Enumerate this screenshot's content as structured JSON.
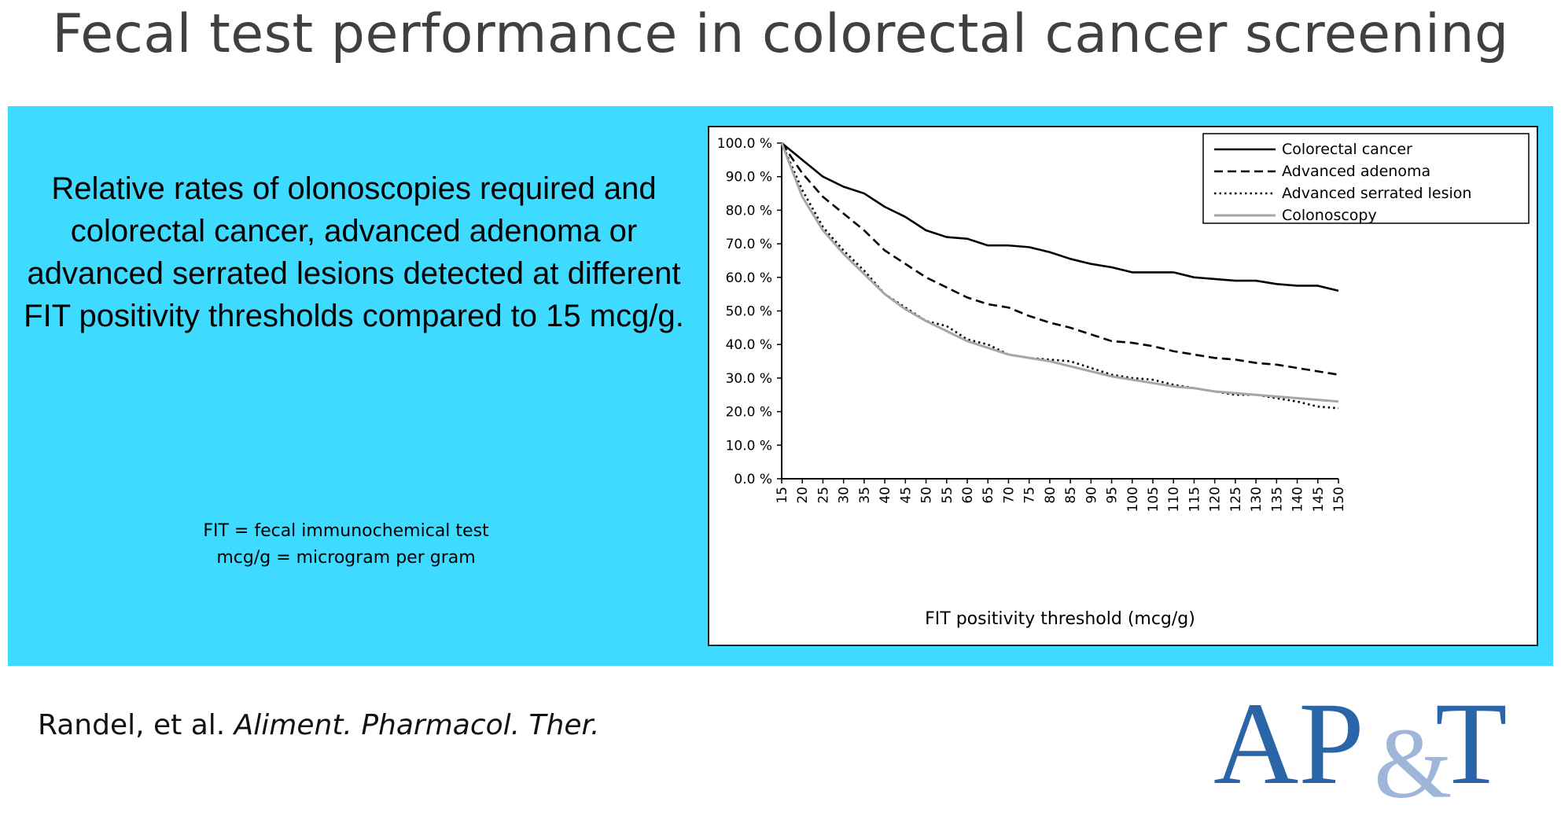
{
  "slide": {
    "title": "Fecal test performance in colorectal cancer screening",
    "headline": "Relative rates of olonoscopies required and colorectal cancer, advanced adenoma or advanced serrated lesions detected at different FIT positivity thresholds compared to 15 mcg/g.",
    "footnote_line1": "FIT = fecal immunochemical test",
    "footnote_line2": "mcg/g = microgram per gram",
    "citation_authors": "Randel, et al. ",
    "citation_journal": "Aliment. Pharmacol. Ther.",
    "logo_text": "AP&T",
    "colors": {
      "panel": "#3fdaff",
      "logo_primary": "#2a65a8",
      "logo_ampersand": "#9fb6d9",
      "title": "#404040"
    }
  },
  "chart_data": {
    "type": "line",
    "title": "",
    "xlabel": "FIT positivity threshold (mcg/g)",
    "ylabel": "",
    "x": [
      15,
      20,
      25,
      30,
      35,
      40,
      45,
      50,
      55,
      60,
      65,
      70,
      75,
      80,
      85,
      90,
      95,
      100,
      105,
      110,
      115,
      120,
      125,
      130,
      135,
      140,
      145,
      150
    ],
    "x_tick_labels": [
      "15",
      "20",
      "25",
      "30",
      "35",
      "40",
      "45",
      "50",
      "55",
      "60",
      "65",
      "70",
      "75",
      "80",
      "85",
      "90",
      "95",
      "100",
      "105",
      "110",
      "115",
      "120",
      "125",
      "130",
      "135",
      "140",
      "145",
      "150"
    ],
    "y_tick_labels": [
      "0.0 %",
      "10.0 %",
      "20.0 %",
      "30.0 %",
      "40.0 %",
      "50.0 %",
      "60.0 %",
      "70.0 %",
      "80.0 %",
      "90.0 %",
      "100.0 %"
    ],
    "ylim": [
      0,
      100
    ],
    "xlim": [
      15,
      150
    ],
    "grid": false,
    "legend_position": "top-right",
    "series": [
      {
        "name": "Colorectal cancer",
        "style": "solid",
        "color": "#000000",
        "values": [
          100,
          95,
          90,
          87,
          85,
          81,
          78,
          74,
          72,
          71.5,
          69.5,
          69.5,
          69,
          67.5,
          65.5,
          64,
          63,
          61.5,
          61.5,
          61.5,
          60,
          59.5,
          59,
          59,
          58,
          57.5,
          57.5,
          56
        ]
      },
      {
        "name": "Advanced adenoma",
        "style": "dashed",
        "color": "#000000",
        "values": [
          100,
          91,
          84,
          79,
          74,
          68,
          64,
          60,
          57,
          54,
          52,
          51,
          48.5,
          46.5,
          45,
          43,
          41,
          40.5,
          39.5,
          38,
          37,
          36,
          35.5,
          34.5,
          34,
          33,
          32,
          31
        ]
      },
      {
        "name": "Advanced serrated lesion",
        "style": "dotted",
        "color": "#000000",
        "values": [
          100,
          86,
          75,
          68,
          62,
          55,
          51,
          47,
          45.5,
          41.5,
          40,
          37,
          36,
          35.5,
          35,
          33,
          31,
          30,
          29.5,
          28,
          27,
          26,
          25,
          25,
          24,
          23,
          21.5,
          21
        ]
      },
      {
        "name": "Colonoscopy",
        "style": "solid",
        "color": "#a6a6a6",
        "values": [
          100,
          84,
          74,
          67,
          61,
          55,
          50.5,
          47,
          44,
          41,
          39,
          37,
          36,
          35,
          33.5,
          32,
          30.5,
          29.5,
          28.5,
          27.5,
          27,
          26,
          25.5,
          25,
          24.5,
          24,
          23.5,
          23
        ]
      }
    ]
  }
}
